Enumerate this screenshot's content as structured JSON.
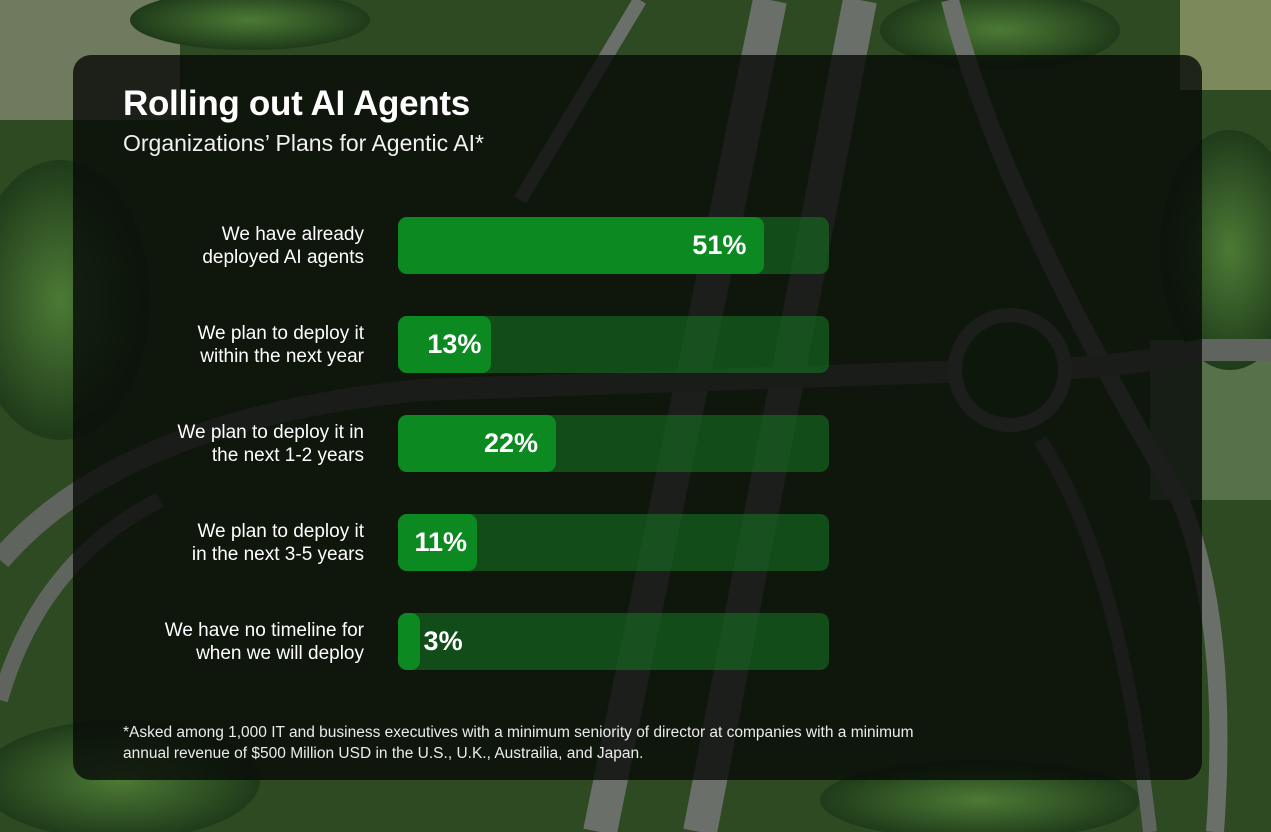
{
  "chart_data": {
    "type": "bar",
    "orientation": "horizontal",
    "title": "Rolling out AI Agents",
    "subtitle": "Organizations’ Plans for Agentic AI*",
    "categories": [
      [
        "We have already",
        "deployed AI agents"
      ],
      [
        "We plan to deploy it",
        "within the next year"
      ],
      [
        "We plan to deploy it in",
        "the next 1-2 years"
      ],
      [
        "We plan to deploy it",
        "in the next 3-5 years"
      ],
      [
        "We have no timeline for",
        "when we will deploy"
      ]
    ],
    "values": [
      51,
      13,
      22,
      11,
      3
    ],
    "value_labels": [
      "51%",
      "13%",
      "22%",
      "11%",
      "3%"
    ],
    "unit": "%",
    "xlim": [
      0,
      60
    ],
    "grid": false,
    "colors": {
      "bar": "#0c8a21",
      "track": "#1d7a2e",
      "panel": "#0a0c0a"
    },
    "footnote": [
      "*Asked among 1,000 IT and business executives with a minimum seniority of director at companies with a minimum",
      "annual revenue of $500 Million USD in the U.S., U.K., Austrailia, and Japan."
    ]
  },
  "background": {
    "description_icon": "aerial-highway-interchange-photo"
  }
}
